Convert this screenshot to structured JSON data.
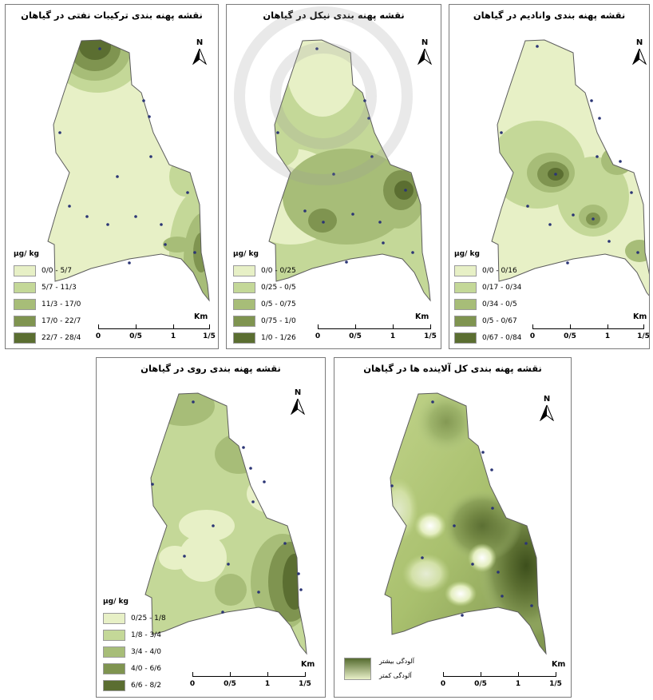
{
  "panels": {
    "p1": {
      "title": "نقشه پهنه بندی ترکیبات نفتی در گیاهان",
      "legend_title": "µg/ kg",
      "classes": [
        "0/0 - 5/7",
        "5/7 - 11/3",
        "11/3 - 17/0",
        "17/0 - 22/7",
        "22/7 - 28/4"
      ],
      "km": "Km",
      "ticks": [
        "0",
        "0/5",
        "1",
        "1/5"
      ]
    },
    "p2": {
      "title": "نقشه پهنه بندی نیکل در گیاهان",
      "legend_title": "µg/ kg",
      "classes": [
        "0/0 - 0/25",
        "0/25 - 0/5",
        "0/5 - 0/75",
        "0/75 - 1/0",
        "1/0 - 1/26"
      ],
      "km": "Km",
      "ticks": [
        "0",
        "0/5",
        "1",
        "1/5"
      ]
    },
    "p3": {
      "title": "نقشه پهنه بندی وانادیم در گیاهان",
      "legend_title": "µg/ kg",
      "classes": [
        "0/0 - 0/16",
        "0/17 - 0/34",
        "0/34 - 0/5",
        "0/5 - 0/67",
        "0/67 - 0/84"
      ],
      "km": "Km",
      "ticks": [
        "0",
        "0/5",
        "1",
        "1/5"
      ]
    },
    "p4": {
      "title": "نقشه پهنه بندی روی در گیاهان",
      "legend_title": "µg/ kg",
      "classes": [
        "0/25 - 1/8",
        "1/8 - 3/4",
        "3/4 - 4/0",
        "4/0 - 6/6",
        "6/6 - 8/2"
      ],
      "km": "Km",
      "ticks": [
        "0",
        "0/5",
        "1",
        "1/5"
      ]
    },
    "p5": {
      "title": "نقشه پهنه بندی کل آلاینده ها در گیاهان",
      "legend_high": "آلودگی بیشتر",
      "legend_low": "آلودگی کمتر",
      "km": "Km",
      "ticks": [
        "0",
        "0/5",
        "1",
        "1/5"
      ]
    }
  },
  "north_label": "N",
  "colors": {
    "class1": "#e7f0c6",
    "class2": "#c4d898",
    "class3": "#a7bd78",
    "class4": "#7f9450",
    "class5": "#5b6e31",
    "sample_point": "#2b3575",
    "border": "#5c5c5c"
  }
}
